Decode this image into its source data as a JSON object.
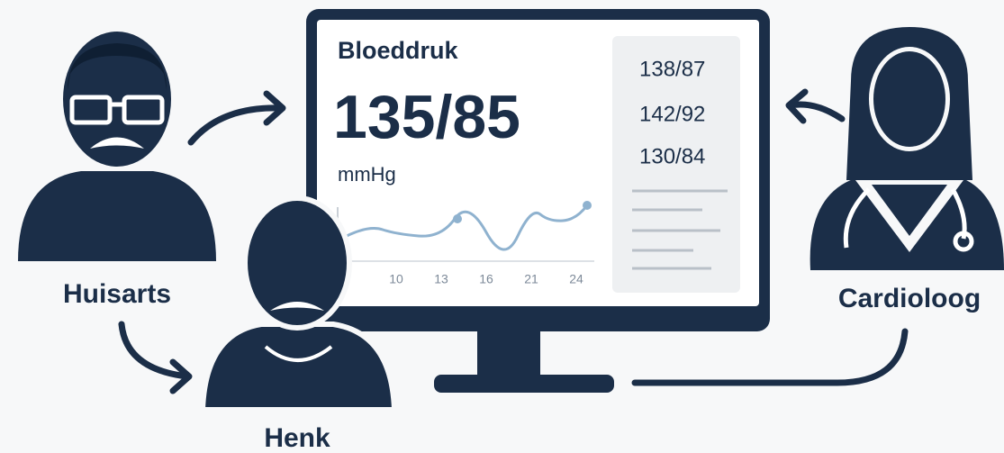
{
  "figures": {
    "left": "Huisarts",
    "center": "Henk",
    "right": "Cardioloog"
  },
  "monitor": {
    "title": "Bloeddruk",
    "reading": "135/85",
    "unit": "mmHg",
    "history": [
      "138/87",
      "142/92",
      "130/84"
    ],
    "axis_labels": [
      "10",
      "13",
      "16",
      "21",
      "24"
    ]
  }
}
